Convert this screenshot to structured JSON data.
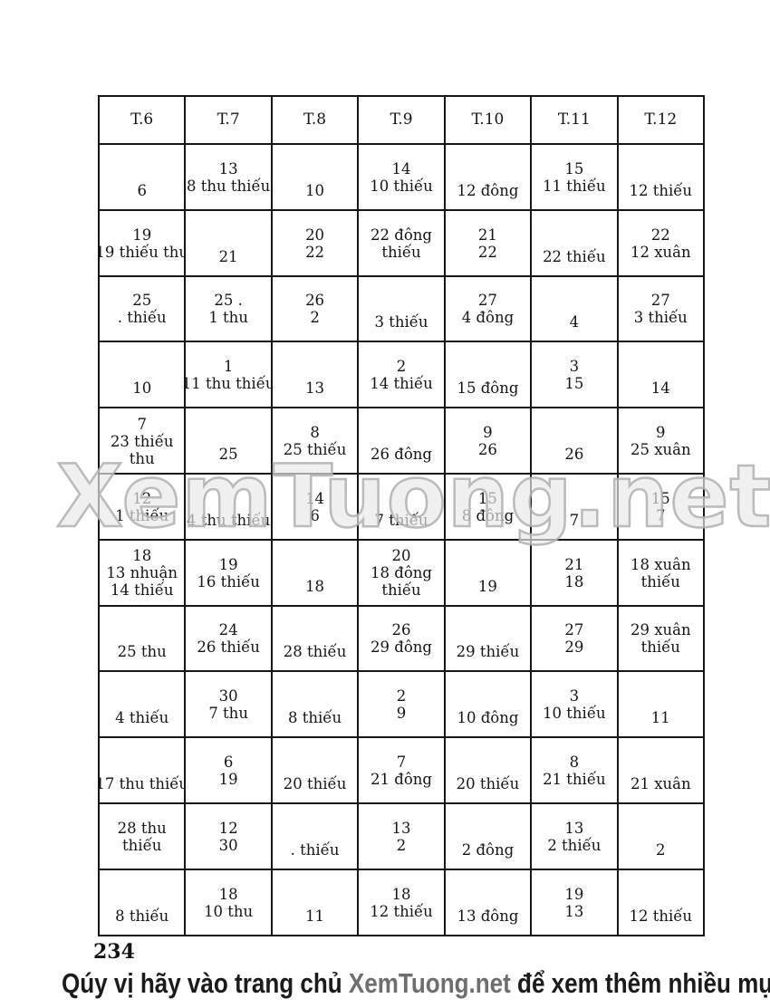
{
  "table": {
    "columns": [
      "T.6",
      "T.7",
      "T.8",
      "T.9",
      "T.10",
      "T.11",
      "T.12"
    ],
    "rows": [
      [
        [
          "6"
        ],
        [
          "13",
          "8 thu thiếu"
        ],
        [
          "10"
        ],
        [
          "14",
          "10 thiếu"
        ],
        [
          "12 đông"
        ],
        [
          "15",
          "11 thiếu"
        ],
        [
          "12 thiếu"
        ]
      ],
      [
        [
          "19",
          "19 thiếu thu"
        ],
        [
          "21"
        ],
        [
          "20",
          "22"
        ],
        [
          "22 đông",
          "thiếu"
        ],
        [
          "21",
          "22"
        ],
        [
          "22 thiếu"
        ],
        [
          "22",
          "12 xuân"
        ]
      ],
      [
        [
          "25",
          ". thiếu"
        ],
        [
          "25 .",
          "1 thu"
        ],
        [
          "26",
          "2"
        ],
        [
          "3 thiếu"
        ],
        [
          "27",
          "4 đông"
        ],
        [
          "4"
        ],
        [
          "27",
          "3 thiếu"
        ]
      ],
      [
        [
          "10"
        ],
        [
          "1",
          "11 thu thiếu"
        ],
        [
          "13"
        ],
        [
          "2",
          "14 thiếu"
        ],
        [
          "15 đông"
        ],
        [
          "3",
          "15"
        ],
        [
          "14"
        ]
      ],
      [
        [
          "7",
          "23 thiếu",
          "thu"
        ],
        [
          "25"
        ],
        [
          "8",
          "25 thiếu"
        ],
        [
          "26 đông"
        ],
        [
          "9",
          "26"
        ],
        [
          "26"
        ],
        [
          "9",
          "25 xuân"
        ]
      ],
      [
        [
          "12",
          "1 thiếu"
        ],
        [
          "4 thu thiếu"
        ],
        [
          "14",
          "6"
        ],
        [
          "7 thiếu"
        ],
        [
          "15",
          "8 đông"
        ],
        [
          "7"
        ],
        [
          "15",
          "7"
        ]
      ],
      [
        [
          "18",
          "13 nhuận",
          "14 thiếu"
        ],
        [
          "19",
          "16 thiếu"
        ],
        [
          "18"
        ],
        [
          "20",
          "18 đông",
          "thiếu"
        ],
        [
          "19"
        ],
        [
          "21",
          "18"
        ],
        [
          "18 xuân",
          "thiếu"
        ]
      ],
      [
        [
          "25 thu"
        ],
        [
          "24",
          "26 thiếu"
        ],
        [
          "28 thiếu"
        ],
        [
          "26",
          "29 đông"
        ],
        [
          "29 thiếu"
        ],
        [
          "27",
          "29"
        ],
        [
          "29 xuân",
          "thiếu"
        ]
      ],
      [
        [
          "4 thiếu"
        ],
        [
          "30",
          "7 thu"
        ],
        [
          "8 thiếu"
        ],
        [
          "2",
          "9"
        ],
        [
          "10 đông"
        ],
        [
          "3",
          "10 thiếu"
        ],
        [
          "11"
        ]
      ],
      [
        [
          "17 thu thiếu"
        ],
        [
          "6",
          "19"
        ],
        [
          "20 thiếu"
        ],
        [
          "7",
          "21 đông"
        ],
        [
          "20 thiếu"
        ],
        [
          "8",
          "21 thiếu"
        ],
        [
          "21 xuân"
        ]
      ],
      [
        [
          "28 thu",
          "thiếu"
        ],
        [
          "12",
          "30"
        ],
        [
          ". thiếu"
        ],
        [
          "13",
          "2"
        ],
        [
          "2 đông"
        ],
        [
          "13",
          "2 thiếu"
        ],
        [
          "2"
        ]
      ],
      [
        [
          "8 thiếu"
        ],
        [
          "18",
          "10 thu"
        ],
        [
          "11"
        ],
        [
          "18",
          "12 thiếu"
        ],
        [
          "13 đông"
        ],
        [
          "19",
          "13"
        ],
        [
          "12 thiếu"
        ]
      ]
    ]
  },
  "watermark": {
    "text": "XemTuong.net"
  },
  "footer": {
    "page_number": "234",
    "line_prefix": "Qúy vị hãy vào trang chủ ",
    "line_brand": "XemTuong.net",
    "line_suffix": " để xem thêm nhiều mục hay khác"
  },
  "colors": {
    "ink": "#161616",
    "watermark_stroke": "#b0b0b0",
    "footer_brand_gray": "#6e6e6e"
  }
}
